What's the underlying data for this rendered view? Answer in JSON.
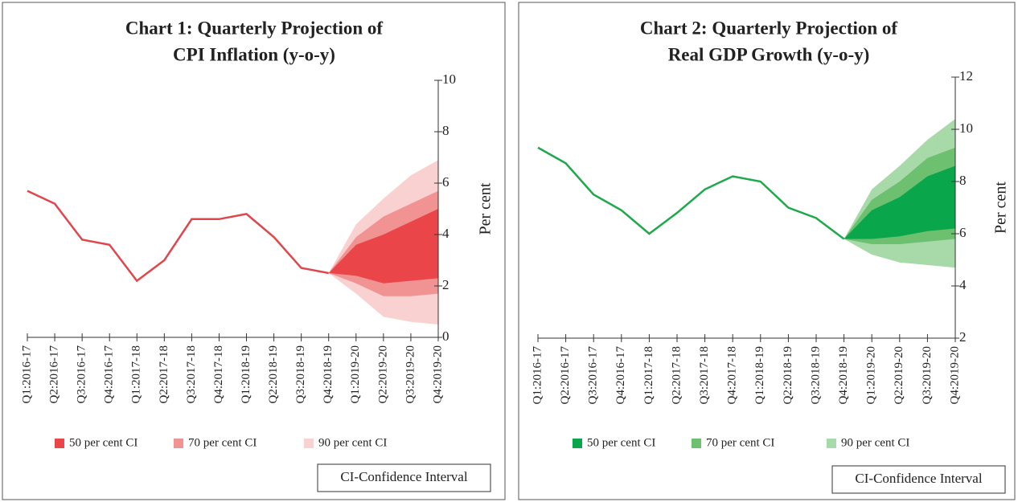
{
  "chart_data": [
    {
      "type": "fan",
      "title": [
        "Chart 1: Quarterly Projection of",
        "CPI Inflation (y-o-y)"
      ],
      "y_label": "Per cent",
      "categories": [
        "Q1:2016-17",
        "Q2:2016-17",
        "Q3:2016-17",
        "Q4:2016-17",
        "Q1:2017-18",
        "Q2:2017-18",
        "Q3:2017-18",
        "Q4:2017-18",
        "Q1:2018-19",
        "Q2:2018-19",
        "Q3:2018-19",
        "Q4:2018-19",
        "Q1:2019-20",
        "Q2:2019-20",
        "Q3:2019-20",
        "Q4:2019-20"
      ],
      "color": "#e0474c",
      "values": [
        5.7,
        5.2,
        3.8,
        3.6,
        2.2,
        3.0,
        4.6,
        4.6,
        4.8,
        3.9,
        2.7,
        2.5,
        null,
        null,
        null,
        null
      ],
      "series": [
        {
          "name": "50 per cent CI",
          "color": "#ea4649",
          "high": [
            null,
            null,
            null,
            null,
            null,
            null,
            null,
            null,
            null,
            null,
            null,
            2.5,
            3.6,
            4.0,
            4.5,
            5.0
          ],
          "low": [
            null,
            null,
            null,
            null,
            null,
            null,
            null,
            null,
            null,
            null,
            null,
            2.5,
            2.4,
            2.1,
            2.2,
            2.3
          ]
        },
        {
          "name": "70 per cent CI",
          "color": "#f19392",
          "high": [
            null,
            null,
            null,
            null,
            null,
            null,
            null,
            null,
            null,
            null,
            null,
            2.5,
            3.9,
            4.7,
            5.2,
            5.7
          ],
          "low": [
            null,
            null,
            null,
            null,
            null,
            null,
            null,
            null,
            null,
            null,
            null,
            2.5,
            2.1,
            1.6,
            1.6,
            1.7
          ]
        },
        {
          "name": "90 per cent CI",
          "color": "#fad1d1",
          "high": [
            null,
            null,
            null,
            null,
            null,
            null,
            null,
            null,
            null,
            null,
            null,
            2.5,
            4.4,
            5.4,
            6.3,
            6.9
          ],
          "low": [
            null,
            null,
            null,
            null,
            null,
            null,
            null,
            null,
            null,
            null,
            null,
            2.5,
            1.7,
            0.8,
            0.6,
            0.5
          ]
        }
      ],
      "ylim": [
        0,
        10
      ],
      "yticks": [
        0,
        2,
        4,
        6,
        8,
        10
      ],
      "note": "CI-Confidence Interval"
    },
    {
      "type": "fan",
      "title": [
        "Chart 2: Quarterly Projection of",
        "Real GDP Growth (y-o-y)"
      ],
      "y_label": "Per cent",
      "categories": [
        "Q1:2016-17",
        "Q2:2016-17",
        "Q3:2016-17",
        "Q4:2016-17",
        "Q1:2017-18",
        "Q2:2017-18",
        "Q3:2017-18",
        "Q4:2017-18",
        "Q1:2018-19",
        "Q2:2018-19",
        "Q3:2018-19",
        "Q4:2018-19",
        "Q1:2019-20",
        "Q2:2019-20",
        "Q3:2019-20",
        "Q4:2019-20"
      ],
      "color": "#1ea94b",
      "values": [
        9.3,
        8.7,
        7.5,
        6.9,
        6.0,
        6.8,
        7.7,
        8.2,
        8.0,
        7.0,
        6.6,
        5.8,
        null,
        null,
        null,
        null
      ],
      "series": [
        {
          "name": "50 per cent CI",
          "color": "#0aa64b",
          "high": [
            null,
            null,
            null,
            null,
            null,
            null,
            null,
            null,
            null,
            null,
            null,
            5.8,
            6.9,
            7.4,
            8.2,
            8.6
          ],
          "low": [
            null,
            null,
            null,
            null,
            null,
            null,
            null,
            null,
            null,
            null,
            null,
            5.8,
            5.8,
            5.9,
            6.1,
            6.2
          ]
        },
        {
          "name": "70 per cent CI",
          "color": "#6cc070",
          "high": [
            null,
            null,
            null,
            null,
            null,
            null,
            null,
            null,
            null,
            null,
            null,
            5.8,
            7.3,
            8.0,
            8.9,
            9.3
          ],
          "low": [
            null,
            null,
            null,
            null,
            null,
            null,
            null,
            null,
            null,
            null,
            null,
            5.8,
            5.6,
            5.6,
            5.7,
            5.8
          ]
        },
        {
          "name": "90 per cent CI",
          "color": "#a8d9a9",
          "high": [
            null,
            null,
            null,
            null,
            null,
            null,
            null,
            null,
            null,
            null,
            null,
            5.8,
            7.7,
            8.6,
            9.6,
            10.4
          ],
          "low": [
            null,
            null,
            null,
            null,
            null,
            null,
            null,
            null,
            null,
            null,
            null,
            5.8,
            5.2,
            4.9,
            4.8,
            4.7
          ]
        }
      ],
      "ylim": [
        2,
        12
      ],
      "yticks": [
        2,
        4,
        6,
        8,
        10,
        12
      ],
      "note": "CI-Confidence Interval"
    }
  ]
}
